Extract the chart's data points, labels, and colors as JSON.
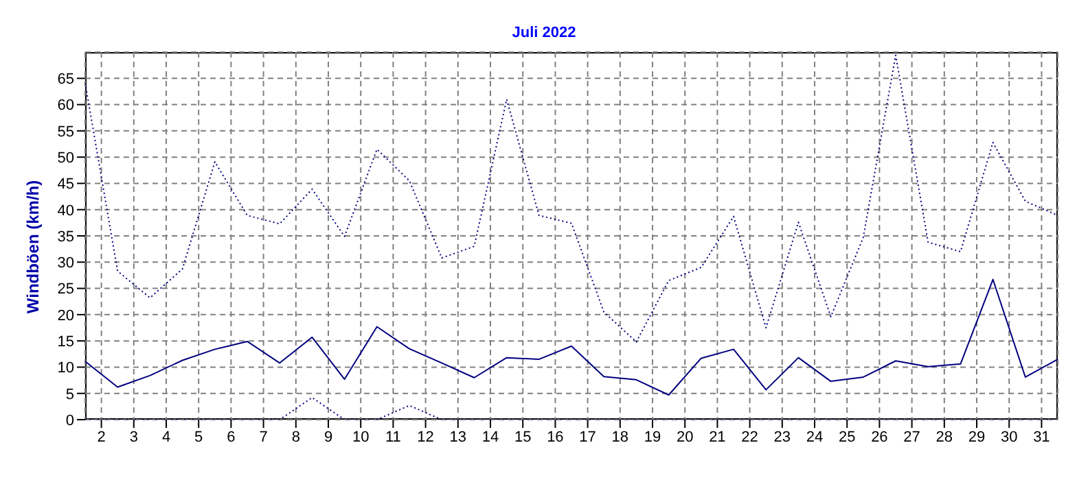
{
  "chart_data": {
    "type": "line",
    "title": "Juli 2022",
    "ylabel": "Windböen (km/h)",
    "x": [
      1,
      2,
      3,
      4,
      5,
      6,
      7,
      8,
      9,
      10,
      11,
      12,
      13,
      14,
      15,
      16,
      17,
      18,
      19,
      20,
      21,
      22,
      23,
      24,
      25,
      26,
      27,
      28,
      29,
      30,
      31
    ],
    "series": [
      {
        "color": "#000080",
        "line_style": "dotted",
        "values": [
          64.1,
          28.3,
          23.2,
          28.7,
          49.1,
          38.9,
          37.3,
          43.9,
          34.9,
          51.5,
          45.5,
          30.8,
          33.0,
          61.0,
          38.9,
          37.4,
          20.5,
          14.8,
          26.5,
          29.0,
          38.7,
          17.5,
          37.6,
          19.6,
          34.7,
          69.4,
          33.8,
          32.0,
          52.8,
          41.6,
          38.9
        ]
      },
      {
        "color": "#000080",
        "line_style": "solid",
        "values": [
          11.1,
          6.2,
          8.4,
          11.3,
          13.4,
          14.9,
          10.8,
          15.7,
          7.7,
          17.7,
          13.5,
          10.8,
          8.0,
          11.8,
          11.5,
          14.0,
          8.2,
          7.6,
          4.7,
          11.7,
          13.4,
          5.7,
          11.8,
          7.3,
          8.1,
          11.2,
          10.1,
          10.6,
          26.7,
          8.1,
          11.5
        ]
      },
      {
        "color": "#000080",
        "line_style": "dotted",
        "values": [
          0,
          0,
          0,
          0,
          0,
          0,
          0,
          4.2,
          0,
          0,
          2.7,
          0,
          0,
          0,
          0,
          0,
          0,
          0,
          0,
          0,
          0,
          0,
          0,
          0,
          0,
          0,
          0,
          0,
          0,
          0,
          0
        ]
      }
    ],
    "xlim": [
      1,
      31
    ],
    "xticks": [
      {
        "value": 1.5,
        "label": "2"
      },
      {
        "value": 2.5,
        "label": "3"
      },
      {
        "value": 3.5,
        "label": "4"
      },
      {
        "value": 4.5,
        "label": "5"
      },
      {
        "value": 5.5,
        "label": "6"
      },
      {
        "value": 6.5,
        "label": "7"
      },
      {
        "value": 7.5,
        "label": "8"
      },
      {
        "value": 8.5,
        "label": "9"
      },
      {
        "value": 9.5,
        "label": "10"
      },
      {
        "value": 10.5,
        "label": "11"
      },
      {
        "value": 11.5,
        "label": "12"
      },
      {
        "value": 12.5,
        "label": "13"
      },
      {
        "value": 13.5,
        "label": "14"
      },
      {
        "value": 14.5,
        "label": "15"
      },
      {
        "value": 15.5,
        "label": "16"
      },
      {
        "value": 16.5,
        "label": "17"
      },
      {
        "value": 17.5,
        "label": "18"
      },
      {
        "value": 18.5,
        "label": "19"
      },
      {
        "value": 19.5,
        "label": "20"
      },
      {
        "value": 20.5,
        "label": "21"
      },
      {
        "value": 21.5,
        "label": "22"
      },
      {
        "value": 22.5,
        "label": "23"
      },
      {
        "value": 23.5,
        "label": "24"
      },
      {
        "value": 24.5,
        "label": "25"
      },
      {
        "value": 25.5,
        "label": "26"
      },
      {
        "value": 26.5,
        "label": "27"
      },
      {
        "value": 27.5,
        "label": "28"
      },
      {
        "value": 28.5,
        "label": "29"
      },
      {
        "value": 29.5,
        "label": "30"
      },
      {
        "value": 30.5,
        "label": "31"
      }
    ],
    "ylim": [
      0,
      70
    ],
    "yticks": [
      0,
      5,
      10,
      15,
      20,
      25,
      30,
      35,
      40,
      45,
      50,
      55,
      60,
      65
    ],
    "grid": true,
    "legend": false,
    "marker": "none"
  }
}
